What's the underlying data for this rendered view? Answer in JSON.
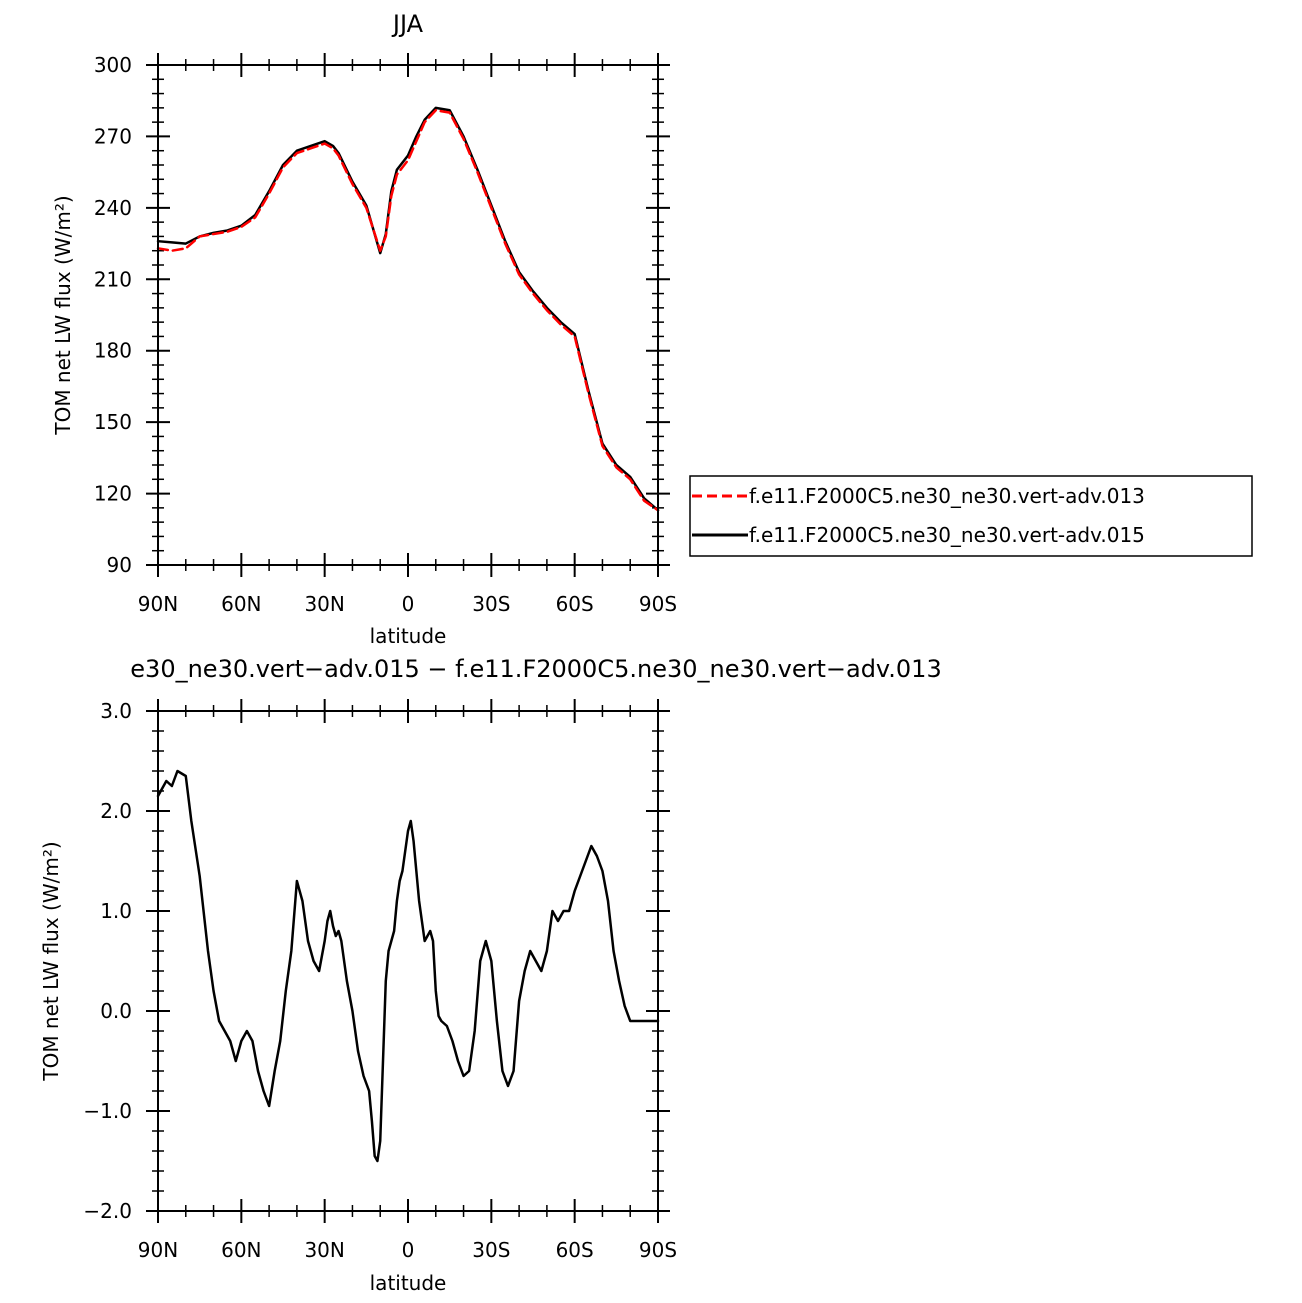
{
  "chart_data": [
    {
      "type": "line",
      "title": "JJA",
      "xlabel": "latitude",
      "ylabel": "TOM net LW flux (W/m²)",
      "xlim": [
        90,
        -90
      ],
      "ylim": [
        90,
        300
      ],
      "xticks": [
        90,
        60,
        30,
        0,
        -30,
        -60,
        -90
      ],
      "xtick_labels": [
        "90N",
        "60N",
        "30N",
        "0",
        "30S",
        "60S",
        "90S"
      ],
      "yticks": [
        90,
        120,
        150,
        180,
        210,
        240,
        270,
        300
      ],
      "ytick_labels": [
        "90",
        "120",
        "150",
        "180",
        "210",
        "240",
        "270",
        "300"
      ],
      "legend_position": "right",
      "series": [
        {
          "name": "f.e11.F2000C5.ne30_ne30.vert-adv.013",
          "color": "#ff0000",
          "dash": "dashed",
          "x": [
            90,
            85,
            80,
            75,
            70,
            65,
            60,
            55,
            50,
            45,
            40,
            35,
            30,
            27,
            25,
            20,
            15,
            10,
            8,
            6,
            4,
            2,
            0,
            -3,
            -6,
            -10,
            -15,
            -20,
            -25,
            -30,
            -35,
            -40,
            -45,
            -50,
            -55,
            -60,
            -65,
            -70,
            -75,
            -80,
            -85,
            -90
          ],
          "y": [
            223,
            222,
            223,
            228,
            229,
            230,
            232,
            236,
            246,
            257,
            263,
            265,
            267,
            265,
            262,
            250,
            240,
            222,
            228,
            245,
            254,
            257,
            260,
            268,
            276,
            281,
            280,
            269,
            255,
            240,
            225,
            212,
            204,
            197,
            191,
            186,
            162,
            140,
            131,
            126,
            117,
            113
          ]
        },
        {
          "name": "f.e11.F2000C5.ne30_ne30.vert-adv.015",
          "color": "#000000",
          "dash": "solid",
          "x": [
            90,
            85,
            80,
            75,
            70,
            65,
            60,
            55,
            50,
            45,
            40,
            35,
            30,
            27,
            25,
            20,
            15,
            10,
            8,
            6,
            4,
            2,
            0,
            -3,
            -6,
            -10,
            -15,
            -20,
            -25,
            -30,
            -35,
            -40,
            -45,
            -50,
            -55,
            -60,
            -65,
            -70,
            -75,
            -80,
            -85,
            -90
          ],
          "y": [
            226,
            225.5,
            225,
            228,
            229.5,
            230.5,
            232.5,
            237,
            247,
            258,
            264,
            266,
            268,
            266,
            263,
            251,
            241,
            221,
            229,
            247,
            256,
            259,
            262,
            270,
            277,
            282,
            281,
            270,
            256,
            241,
            226,
            213,
            205,
            198,
            192,
            187,
            163,
            141,
            132,
            127,
            118,
            113
          ]
        }
      ]
    },
    {
      "type": "line",
      "title": "e30_ne30.vert−adv.015 − f.e11.F2000C5.ne30_ne30.vert−adv.013",
      "xlabel": "latitude",
      "ylabel": "TOM net LW flux (W/m²)",
      "xlim": [
        90,
        -90
      ],
      "ylim": [
        -2.0,
        3.0
      ],
      "xticks": [
        90,
        60,
        30,
        0,
        -30,
        -60,
        -90
      ],
      "xtick_labels": [
        "90N",
        "60N",
        "30N",
        "0",
        "30S",
        "60S",
        "90S"
      ],
      "yticks": [
        -2,
        -1,
        0,
        1,
        2,
        3
      ],
      "ytick_labels": [
        "−2.0",
        "−1.0",
        "0.0",
        "1.0",
        "2.0",
        "3.0"
      ],
      "series": [
        {
          "color": "#000000",
          "dash": "solid",
          "x": [
            90,
            89,
            87,
            85,
            83,
            80,
            78,
            75,
            72,
            70,
            68,
            66,
            64,
            62,
            60,
            58,
            56,
            54,
            52,
            50,
            48,
            46,
            44,
            42,
            40,
            38,
            36,
            34,
            32,
            30,
            29,
            28,
            27,
            26,
            25,
            24,
            22,
            20,
            18,
            16,
            14,
            13,
            12,
            11,
            10,
            8,
            7,
            6,
            5,
            4,
            3,
            2,
            1,
            0,
            -1,
            -2,
            -3,
            -4,
            -5,
            -6,
            -7,
            -8,
            -9,
            -10,
            -11,
            -12,
            -14,
            -16,
            -18,
            -20,
            -22,
            -24,
            -26,
            -28,
            -30,
            -32,
            -34,
            -36,
            -38,
            -40,
            -42,
            -44,
            -46,
            -48,
            -50,
            -52,
            -54,
            -56,
            -58,
            -60,
            -62,
            -64,
            -66,
            -68,
            -70,
            -72,
            -74,
            -76,
            -78,
            -80,
            -82,
            -84,
            -86,
            -88,
            -90
          ],
          "y": [
            2.15,
            2.2,
            2.3,
            2.25,
            2.4,
            2.35,
            1.9,
            1.35,
            0.6,
            0.2,
            -0.1,
            -0.2,
            -0.3,
            -0.5,
            -0.3,
            -0.2,
            -0.3,
            -0.6,
            -0.8,
            -0.95,
            -0.6,
            -0.3,
            0.2,
            0.6,
            1.3,
            1.1,
            0.7,
            0.5,
            0.4,
            0.7,
            0.9,
            1.0,
            0.85,
            0.75,
            0.8,
            0.7,
            0.3,
            0.0,
            -0.4,
            -0.65,
            -0.8,
            -1.1,
            -1.45,
            -1.5,
            -1.3,
            0.3,
            0.6,
            0.7,
            0.8,
            1.1,
            1.3,
            1.4,
            1.6,
            1.8,
            1.9,
            1.7,
            1.4,
            1.1,
            0.9,
            0.7,
            0.75,
            0.8,
            0.7,
            0.2,
            -0.05,
            -0.1,
            -0.15,
            -0.3,
            -0.5,
            -0.65,
            -0.6,
            -0.2,
            0.5,
            0.7,
            0.5,
            -0.1,
            -0.6,
            -0.75,
            -0.6,
            0.1,
            0.4,
            0.6,
            0.5,
            0.4,
            0.6,
            1.0,
            0.9,
            1.0,
            1.0,
            1.2,
            1.35,
            1.5,
            1.65,
            1.55,
            1.4,
            1.1,
            0.6,
            0.3,
            0.05,
            -0.1,
            -0.1,
            -0.1,
            -0.1,
            -0.1,
            -0.1
          ]
        }
      ]
    }
  ]
}
